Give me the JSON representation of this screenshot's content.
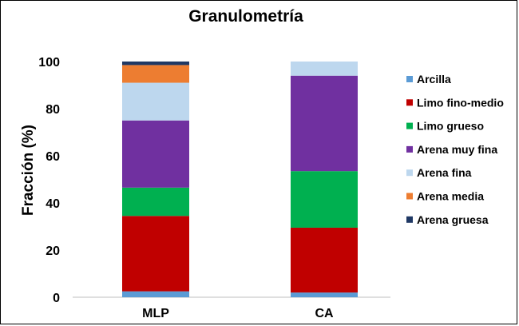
{
  "chart_data": {
    "type": "bar",
    "stacked": true,
    "title": "Granulometría",
    "xlabel": "",
    "ylabel": "Fracción (%)",
    "ylim": [
      0,
      100
    ],
    "yticks": [
      "0",
      "20",
      "40",
      "60",
      "80",
      "100"
    ],
    "categories": [
      "MLP",
      "CA"
    ],
    "legend_position": "right",
    "series": [
      {
        "name": "Arcilla",
        "color": "#5B9BD5",
        "values": [
          2.5,
          2
        ]
      },
      {
        "name": "Limo fino-medio",
        "color": "#C00000",
        "values": [
          32,
          27.5
        ]
      },
      {
        "name": "Limo grueso",
        "color": "#00B050",
        "values": [
          12,
          24
        ]
      },
      {
        "name": "Arena muy fina",
        "color": "#7030A0",
        "values": [
          28.5,
          40.5
        ]
      },
      {
        "name": "Arena fina",
        "color": "#BDD7EE",
        "values": [
          16,
          6
        ]
      },
      {
        "name": "Arena media",
        "color": "#ED7D31",
        "values": [
          7.5,
          0
        ]
      },
      {
        "name": "Arena gruesa",
        "color": "#1F3864",
        "values": [
          1.5,
          0
        ]
      }
    ]
  }
}
